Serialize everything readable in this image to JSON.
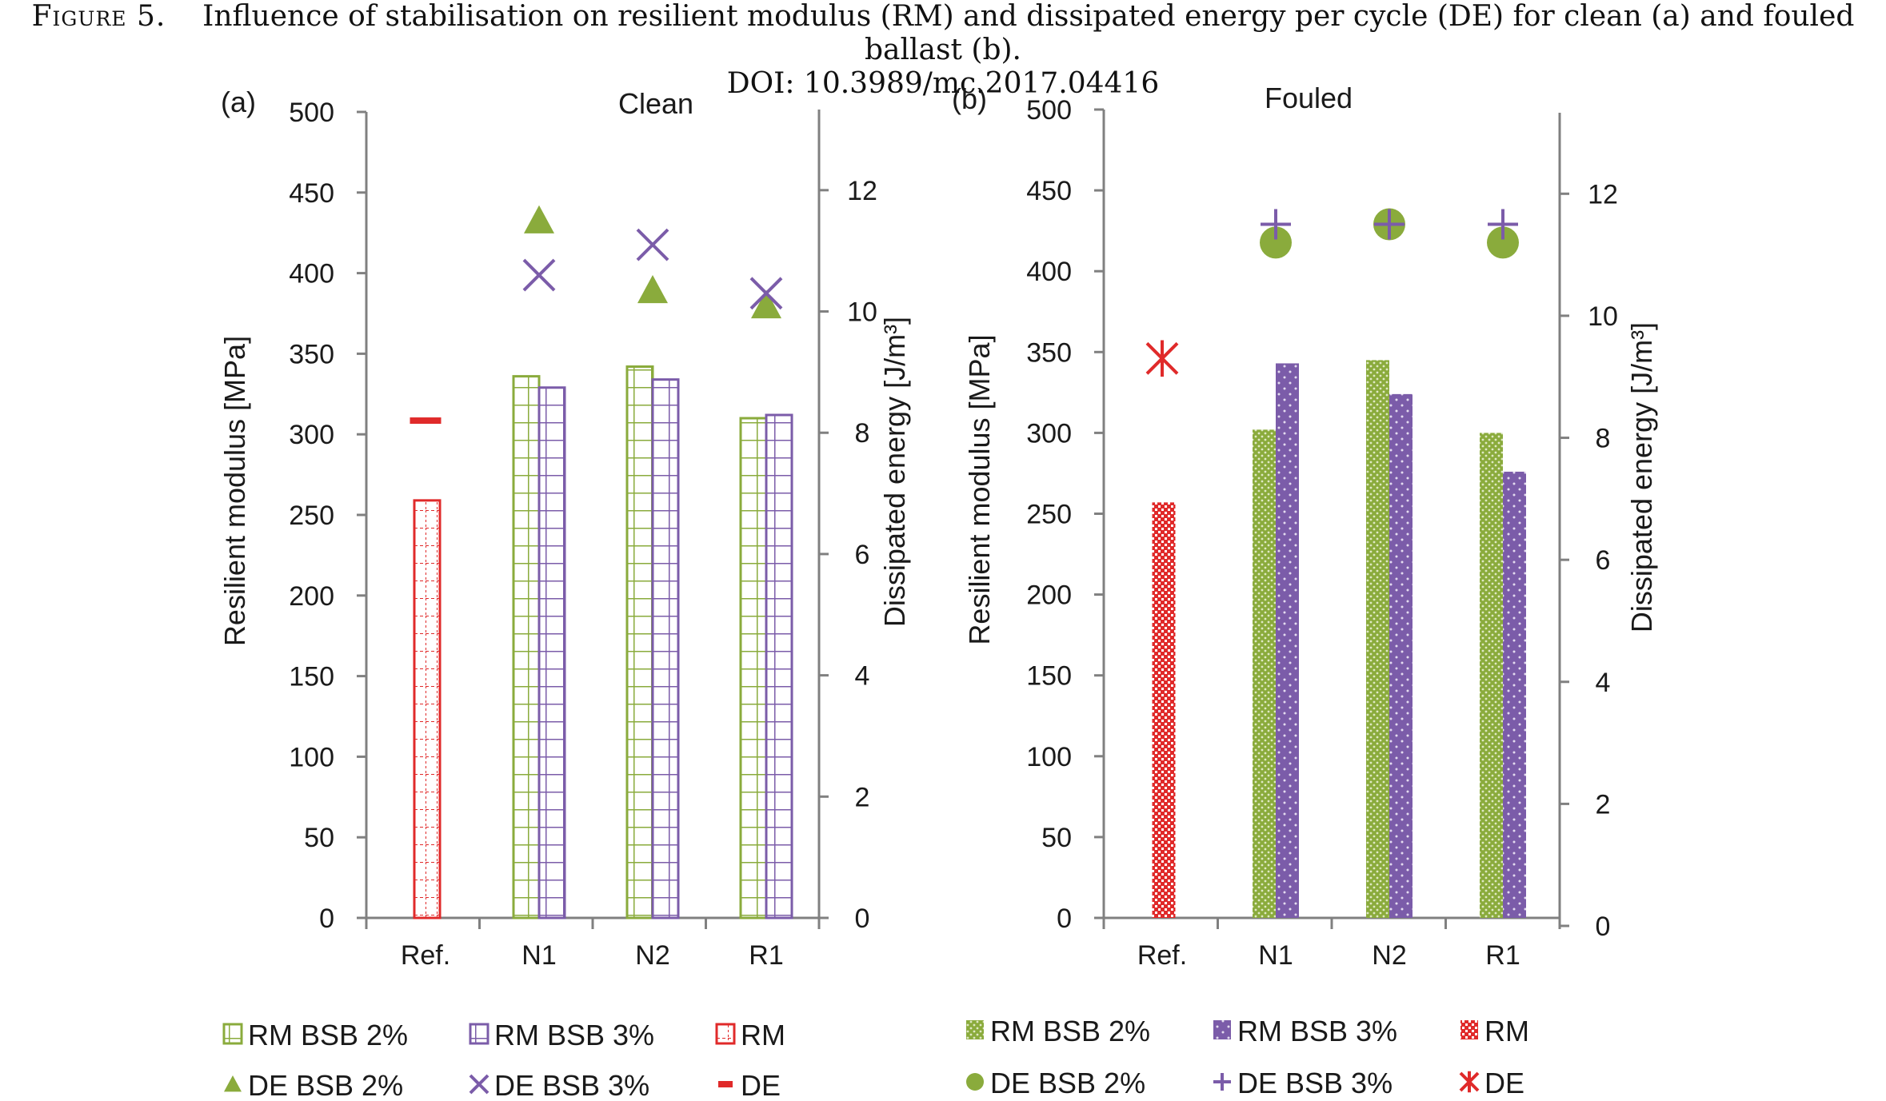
{
  "caption": {
    "label": "Figure 5.",
    "text": "Influence of stabilisation on resilient modulus (RM) and dissipated energy per cycle (DE) for clean (a) and fouled ballast (b).",
    "doi": "DOI: 10.3989/mc.2017.04416"
  },
  "colors": {
    "green": "#8aab3c",
    "purple": "#7b5ca9",
    "red": "#e02a2a",
    "axis": "#808080"
  },
  "chart_data": [
    {
      "type": "bar",
      "panel": "(a)",
      "title": "Clean",
      "categories": [
        "Ref.",
        "N1",
        "N2",
        "R1"
      ],
      "ylabel": "Resilient modulus [MPa]",
      "ylabel2": "Dissipated energy [J/m³]",
      "ylim": [
        0,
        500
      ],
      "y2lim": [
        0,
        13
      ],
      "yticks": [
        0,
        50,
        100,
        150,
        200,
        250,
        300,
        350,
        400,
        450,
        500
      ],
      "y2ticks": [
        0,
        2,
        4,
        6,
        8,
        10,
        12
      ],
      "bar_series": [
        {
          "name": "RM BSB 2%",
          "color": "green",
          "values": [
            null,
            336,
            342,
            310
          ]
        },
        {
          "name": "RM BSB 3%",
          "color": "purple",
          "values": [
            null,
            329,
            334,
            312
          ]
        },
        {
          "name": "RM",
          "color": "red",
          "values": [
            259,
            null,
            null,
            null
          ]
        }
      ],
      "marker_series": [
        {
          "name": "DE BSB 2%",
          "color": "green",
          "marker": "triangle",
          "values": [
            null,
            11.5,
            10.35,
            10.1
          ]
        },
        {
          "name": "DE BSB 3%",
          "color": "purple",
          "marker": "x",
          "values": [
            null,
            10.6,
            11.1,
            10.3
          ]
        },
        {
          "name": "DE",
          "color": "red",
          "marker": "dash",
          "values": [
            8.2,
            null,
            null,
            null
          ]
        }
      ],
      "legend": [
        "RM BSB 2%",
        "RM BSB 3%",
        "RM",
        "DE BSB 2%",
        "DE BSB 3%",
        "DE"
      ]
    },
    {
      "type": "bar",
      "panel": "(b)",
      "title": "Fouled",
      "categories": [
        "Ref.",
        "N1",
        "N2",
        "R1"
      ],
      "ylabel": "Resilient modulus [MPa]",
      "ylabel2": "Dissipated energy [J/m³]",
      "ylim": [
        0,
        500
      ],
      "y2lim": [
        0,
        13
      ],
      "yticks": [
        0,
        50,
        100,
        150,
        200,
        250,
        300,
        350,
        400,
        450,
        500
      ],
      "y2ticks": [
        0,
        2,
        4,
        6,
        8,
        10,
        12
      ],
      "bar_series": [
        {
          "name": "RM BSB 2%",
          "color": "green",
          "values": [
            null,
            302,
            345,
            300
          ]
        },
        {
          "name": "RM BSB 3%",
          "color": "purple",
          "values": [
            null,
            343,
            324,
            276
          ]
        },
        {
          "name": "RM",
          "color": "red",
          "values": [
            257,
            null,
            null,
            null
          ]
        }
      ],
      "marker_series": [
        {
          "name": "DE BSB 2%",
          "color": "green",
          "marker": "circle",
          "values": [
            null,
            11.2,
            11.5,
            11.2
          ]
        },
        {
          "name": "DE BSB 3%",
          "color": "purple",
          "marker": "plus",
          "values": [
            null,
            11.5,
            11.5,
            11.5
          ]
        },
        {
          "name": "DE",
          "color": "red",
          "marker": "asterisk",
          "values": [
            9.3,
            null,
            null,
            null
          ]
        }
      ],
      "legend": [
        "RM BSB 2%",
        "RM BSB 3%",
        "RM",
        "DE BSB 2%",
        "DE BSB 3%",
        "DE"
      ]
    }
  ]
}
